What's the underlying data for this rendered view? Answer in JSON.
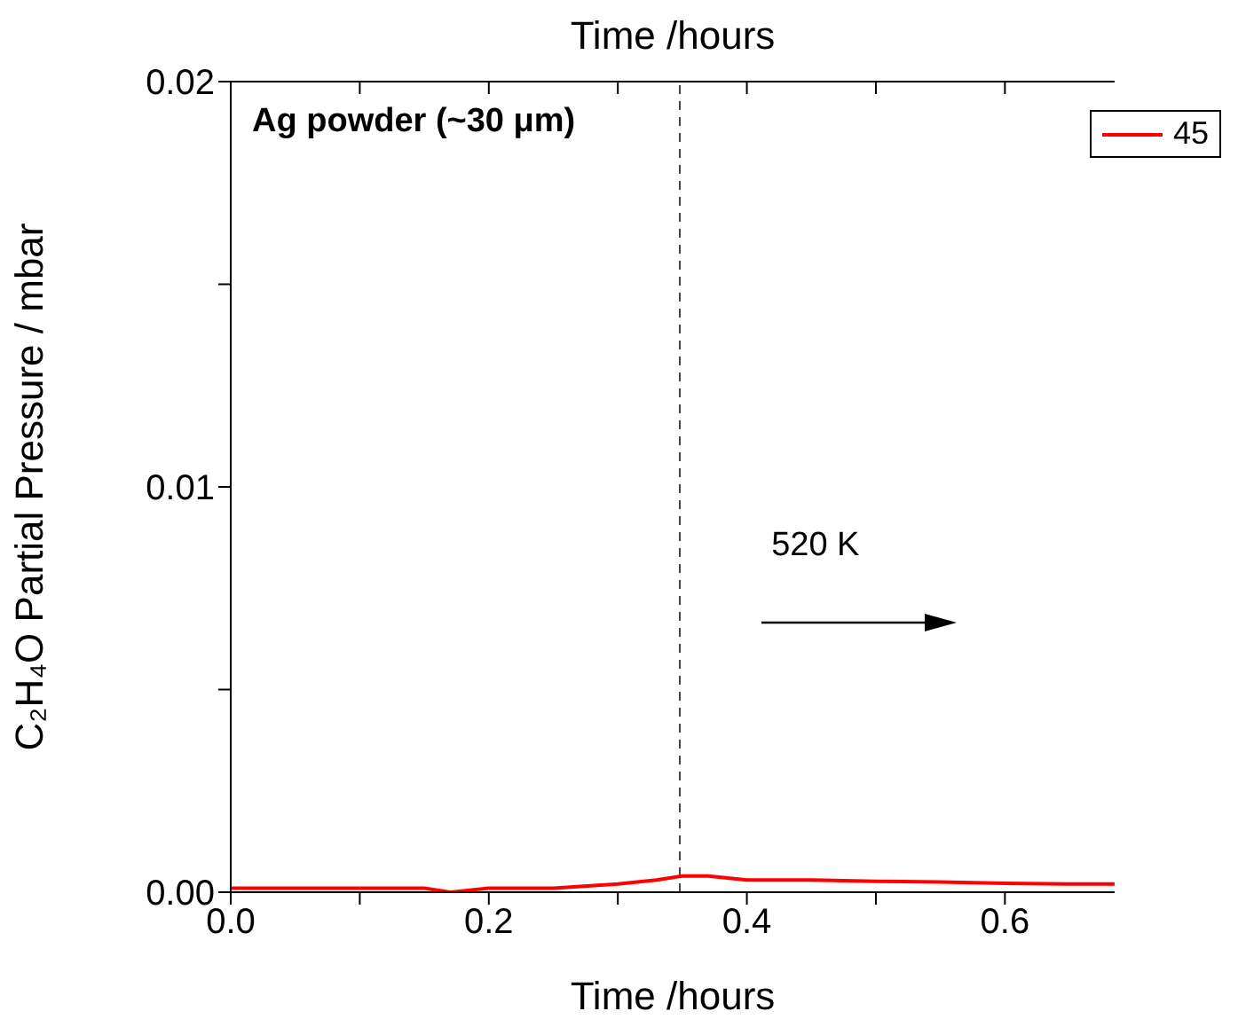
{
  "chart_data": {
    "type": "line",
    "title": "Ag powder (~30 μm)",
    "xlabel": "Time /hours",
    "x2label": "Time /hours",
    "ylabel": "C₂H₄O Partial Pressure / mbar",
    "x": [
      0,
      0.05,
      0.1,
      0.15,
      0.17,
      0.2,
      0.25,
      0.3,
      0.33,
      0.35,
      0.37,
      0.4,
      0.45,
      0.5,
      0.55,
      0.6,
      0.65,
      0.685
    ],
    "series": [
      {
        "name": "45",
        "color": "#ff0000",
        "values": [
          0.0001,
          0.0001,
          0.0001,
          0.0001,
          0,
          0.0001,
          0.0001,
          0.0002,
          0.0003,
          0.0004,
          0.0004,
          0.0003,
          0.0003,
          0.00027,
          0.00025,
          0.00022,
          0.0002,
          0.0002
        ]
      }
    ],
    "xlim": [
      0,
      0.685
    ],
    "xticks": [
      "0.0",
      {
        "value": 0.1,
        "label": null
      },
      0.2,
      {
        "value": 0.3,
        "label": null
      },
      0.4,
      {
        "value": 0.5,
        "label": null
      },
      0.6
    ],
    "ylim": [
      0,
      0.02
    ],
    "yticks": [
      {
        "value": 0,
        "label": "0.00"
      },
      {
        "value": 0.005,
        "label": null
      },
      0.01,
      {
        "value": 0.015,
        "label": null
      },
      0.02
    ],
    "ref_lines": [
      {
        "axis": "x",
        "value": 0.348,
        "label": "520 K",
        "color": "#444444",
        "line_style": "dashed"
      }
    ],
    "grid": false,
    "legend": "top right",
    "marker": "none",
    "line_style": "solid"
  }
}
